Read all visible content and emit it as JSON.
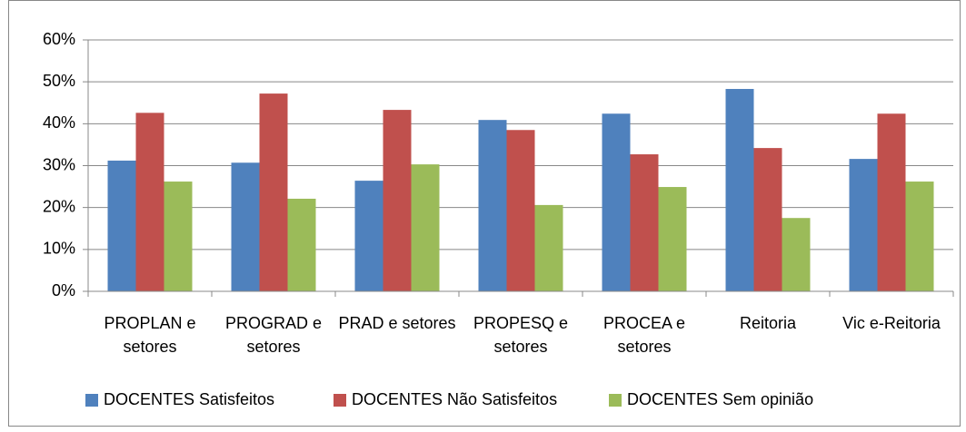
{
  "chart_data": {
    "type": "bar",
    "categories": [
      "PROPLAN e setores",
      "PROGRAD e setores",
      "PRAD e setores",
      "PROPESQ e setores",
      "PROCEA e setores",
      "Reitoria",
      "Vic e-Reitoria"
    ],
    "series": [
      {
        "name": "DOCENTES Satisfeitos",
        "color": "#4f81bd",
        "values": [
          31.2,
          30.7,
          26.4,
          40.9,
          42.4,
          48.3,
          31.6
        ]
      },
      {
        "name": "DOCENTES Não Satisfeitos",
        "color": "#c0504d",
        "values": [
          42.6,
          47.2,
          43.3,
          38.5,
          32.7,
          34.2,
          42.4
        ]
      },
      {
        "name": "DOCENTES Sem opinião",
        "color": "#9bbb59",
        "values": [
          26.2,
          22.1,
          30.3,
          20.6,
          24.9,
          17.5,
          26.2
        ]
      }
    ],
    "ylim": [
      0,
      60
    ],
    "yticks": [
      {
        "value": 0,
        "label": "0%"
      },
      {
        "value": 10,
        "label": "10%"
      },
      {
        "value": 20,
        "label": "20%"
      },
      {
        "value": 30,
        "label": "30%"
      },
      {
        "value": 40,
        "label": "40%"
      },
      {
        "value": 50,
        "label": "50%"
      },
      {
        "value": 60,
        "label": "60%"
      }
    ],
    "grid": true,
    "legend": "bottom"
  }
}
